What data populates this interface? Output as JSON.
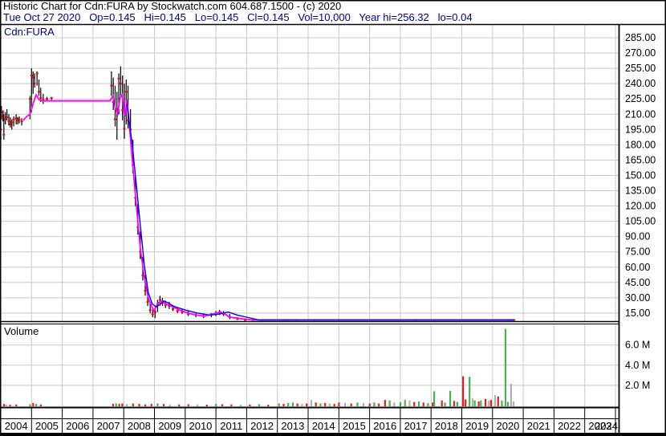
{
  "window_title": "Historic Chart for Cdn:FURA by Stockwatch.com",
  "header": {
    "line1": "Historic Chart for Cdn:FURA by Stockwatch.com 604.687.1500 - (c) 2020",
    "line2": "Tue Oct 27 2020   Op=0.145   Hi=0.145   Lo=0.145   Cl=0.145   Vol=10,000   Year hi=256.32   lo=0.04"
  },
  "quote": {
    "date": "Tue Oct 27 2020",
    "open": "0.145",
    "high": "0.145",
    "low": "0.145",
    "close": "0.145",
    "volume": "10,000",
    "year_high": "256.32",
    "year_low": "0.04"
  },
  "colors": {
    "grid": "#c9c9c9",
    "border": "#000000",
    "ma_fast": "#ff00ff",
    "ma_slow": "#0000ff",
    "candle": "#000000",
    "close_dot": "#ff0000",
    "vol_up": "#4caf50",
    "vol_down": "#e02020",
    "vol_neutral": "#b0b0b0",
    "header2_text": "#00007f",
    "symbol_text": "#000080"
  },
  "chart_data": {
    "type": "candlestick",
    "title": "Historic Chart for Cdn:FURA",
    "symbol_label": "Cdn:FURA",
    "volume_label": "Volume",
    "x_years": [
      "2004",
      "2005",
      "2006",
      "2007",
      "2008",
      "2009",
      "2010",
      "2011",
      "2012",
      "2013",
      "2014",
      "2015",
      "2016",
      "2017",
      "2018",
      "2019",
      "2020",
      "2021",
      "2022",
      "2023",
      "2024"
    ],
    "price_axis": {
      "tick_labels": [
        "285.00",
        "270.00",
        "255.00",
        "240.00",
        "225.00",
        "210.00",
        "195.00",
        "180.00",
        "165.00",
        "150.00",
        "135.00",
        "120.00",
        "105.00",
        "90.00",
        "75.00",
        "60.00",
        "45.00",
        "30.00",
        "15.00"
      ],
      "tick_values": [
        285,
        270,
        255,
        240,
        225,
        210,
        195,
        180,
        165,
        150,
        135,
        120,
        105,
        90,
        75,
        60,
        45,
        30,
        15
      ],
      "grid": true
    },
    "volume_axis": {
      "tick_labels": [
        "6.0 M",
        "4.0 M",
        "2.0 M"
      ],
      "tick_values_millions": [
        6,
        4,
        2
      ],
      "grid": true
    },
    "ma_fast_points": [
      [
        2004.73,
        204
      ],
      [
        2004.85,
        208
      ],
      [
        2004.95,
        210
      ],
      [
        2005.05,
        220
      ],
      [
        2005.15,
        229
      ],
      [
        2005.25,
        224
      ],
      [
        2005.4,
        223
      ],
      [
        2006.0,
        223
      ],
      [
        2007.0,
        223
      ],
      [
        2007.55,
        223
      ],
      [
        2007.65,
        228
      ],
      [
        2007.72,
        216
      ],
      [
        2007.8,
        210
      ],
      [
        2007.88,
        226
      ],
      [
        2007.95,
        229
      ],
      [
        2008.0,
        212
      ],
      [
        2008.05,
        208
      ],
      [
        2008.1,
        224
      ],
      [
        2008.15,
        212
      ],
      [
        2008.28,
        165
      ],
      [
        2008.41,
        121
      ],
      [
        2008.54,
        78
      ],
      [
        2008.67,
        50
      ],
      [
        2008.8,
        30
      ],
      [
        2008.88,
        24
      ],
      [
        2008.98,
        17
      ],
      [
        2009.12,
        25
      ],
      [
        2009.25,
        27
      ],
      [
        2009.36,
        24
      ],
      [
        2009.48,
        23
      ],
      [
        2009.6,
        21
      ],
      [
        2009.75,
        19
      ],
      [
        2009.9,
        17
      ],
      [
        2010.1,
        15
      ],
      [
        2010.35,
        13
      ],
      [
        2010.63,
        12
      ],
      [
        2010.89,
        14
      ],
      [
        2011.02,
        15
      ],
      [
        2011.15,
        16
      ],
      [
        2011.3,
        14
      ],
      [
        2011.45,
        11
      ],
      [
        2011.7,
        10
      ],
      [
        2011.95,
        9
      ],
      [
        2012.2,
        7
      ],
      [
        2012.5,
        5
      ],
      [
        2013.0,
        3
      ],
      [
        2014.0,
        2
      ],
      [
        2016.0,
        2
      ],
      [
        2018.0,
        2
      ],
      [
        2020.7,
        0.15
      ]
    ],
    "ma_slow_points": [
      [
        2008.1,
        220
      ],
      [
        2008.28,
        180
      ],
      [
        2008.41,
        141
      ],
      [
        2008.54,
        101
      ],
      [
        2008.67,
        62
      ],
      [
        2008.8,
        35
      ],
      [
        2008.93,
        24
      ],
      [
        2009.06,
        21
      ],
      [
        2009.2,
        24
      ],
      [
        2009.3,
        27
      ],
      [
        2009.45,
        25
      ],
      [
        2009.6,
        22
      ],
      [
        2009.8,
        20
      ],
      [
        2010.0,
        18
      ],
      [
        2010.4,
        15
      ],
      [
        2010.8,
        13
      ],
      [
        2011.1,
        14
      ],
      [
        2011.4,
        16
      ],
      [
        2011.7,
        13
      ],
      [
        2012.0,
        11
      ],
      [
        2012.4,
        8
      ],
      [
        2012.9,
        6
      ],
      [
        2013.5,
        4
      ],
      [
        2014.5,
        3
      ],
      [
        2020.7,
        1.5
      ]
    ],
    "candles": [
      [
        2004.0,
        210,
        184,
        195
      ],
      [
        2004.02,
        218,
        205,
        208
      ],
      [
        2004.07,
        214,
        203,
        212
      ],
      [
        2004.1,
        210,
        185,
        190
      ],
      [
        2004.15,
        212,
        200,
        205
      ],
      [
        2004.2,
        215,
        204,
        207
      ],
      [
        2004.26,
        210,
        199,
        203
      ],
      [
        2004.31,
        207,
        197,
        200
      ],
      [
        2004.36,
        205,
        195,
        202
      ],
      [
        2004.42,
        208,
        198,
        205
      ],
      [
        2004.5,
        210,
        200,
        206
      ],
      [
        2004.55,
        207,
        200,
        204
      ],
      [
        2004.6,
        208,
        201,
        205
      ],
      [
        2004.68,
        206,
        199,
        203
      ],
      [
        2004.95,
        228,
        205,
        225
      ],
      [
        2005.0,
        255,
        212,
        248
      ],
      [
        2005.05,
        252,
        230,
        246
      ],
      [
        2005.1,
        250,
        236,
        240
      ],
      [
        2005.18,
        252,
        238,
        250
      ],
      [
        2005.24,
        244,
        228,
        232
      ],
      [
        2005.3,
        236,
        222,
        226
      ],
      [
        2005.38,
        230,
        220,
        224
      ],
      [
        2005.5,
        227,
        223,
        225
      ],
      [
        2005.65,
        227,
        224,
        226
      ],
      [
        2007.6,
        252,
        228,
        238
      ],
      [
        2007.66,
        246,
        214,
        222
      ],
      [
        2007.72,
        238,
        198,
        205
      ],
      [
        2007.78,
        232,
        185,
        215
      ],
      [
        2007.84,
        250,
        210,
        245
      ],
      [
        2007.9,
        257,
        228,
        240
      ],
      [
        2007.96,
        248,
        204,
        214
      ],
      [
        2008.02,
        240,
        186,
        196
      ],
      [
        2008.08,
        244,
        200,
        232
      ],
      [
        2008.14,
        238,
        196,
        204
      ],
      [
        2008.22,
        215,
        185,
        195
      ],
      [
        2008.3,
        185,
        152,
        160
      ],
      [
        2008.38,
        150,
        120,
        128
      ],
      [
        2008.46,
        122,
        92,
        99
      ],
      [
        2008.54,
        95,
        68,
        75
      ],
      [
        2008.62,
        70,
        47,
        52
      ],
      [
        2008.7,
        52,
        32,
        37
      ],
      [
        2008.78,
        36,
        22,
        26
      ],
      [
        2008.86,
        26,
        15,
        18
      ],
      [
        2008.94,
        20,
        11,
        14
      ],
      [
        2009.02,
        18,
        10,
        16
      ],
      [
        2009.1,
        28,
        16,
        24
      ],
      [
        2009.18,
        32,
        22,
        28
      ],
      [
        2009.26,
        30,
        22,
        25
      ],
      [
        2009.36,
        27,
        20,
        23
      ],
      [
        2009.48,
        26,
        19,
        22
      ],
      [
        2009.6,
        23,
        17,
        19
      ],
      [
        2009.75,
        21,
        15,
        17
      ],
      [
        2009.9,
        19,
        14,
        16
      ],
      [
        2010.1,
        17,
        12,
        14
      ],
      [
        2010.35,
        15,
        11,
        13
      ],
      [
        2010.6,
        14,
        10,
        12
      ],
      [
        2010.85,
        15,
        11,
        14
      ],
      [
        2011.0,
        17,
        12,
        15
      ],
      [
        2011.12,
        18,
        13,
        16
      ],
      [
        2011.25,
        17,
        12,
        14
      ],
      [
        2011.45,
        14,
        9,
        11
      ],
      [
        2011.7,
        11,
        7,
        9
      ],
      [
        2011.95,
        9,
        5,
        7
      ],
      [
        2012.2,
        7,
        4,
        5
      ],
      [
        2012.5,
        5,
        3,
        4
      ],
      [
        2013.3,
        4,
        2,
        3
      ],
      [
        2013.6,
        3,
        1,
        2
      ],
      [
        2014.2,
        3,
        1,
        2
      ],
      [
        2015.0,
        3,
        1,
        2
      ],
      [
        2016.3,
        3,
        1,
        2
      ],
      [
        2017.5,
        4,
        1,
        2
      ],
      [
        2018.1,
        4,
        1,
        3
      ],
      [
        2020.55,
        4,
        1,
        2
      ],
      [
        2020.7,
        3,
        0.5,
        0.15
      ]
    ],
    "volume_bars_millions": [
      [
        2004.1,
        0.15,
        "r"
      ],
      [
        2004.17,
        0.1,
        "n"
      ],
      [
        2004.3,
        0.08,
        "r"
      ],
      [
        2004.5,
        0.1,
        "r"
      ],
      [
        2004.95,
        0.12,
        "g"
      ],
      [
        2005.05,
        0.25,
        "r"
      ],
      [
        2005.15,
        0.15,
        "g"
      ],
      [
        2005.3,
        0.1,
        "r"
      ],
      [
        2007.65,
        0.15,
        "r"
      ],
      [
        2007.75,
        0.2,
        "g"
      ],
      [
        2007.85,
        0.15,
        "r"
      ],
      [
        2007.95,
        0.2,
        "r"
      ],
      [
        2008.1,
        0.15,
        "n"
      ],
      [
        2008.3,
        0.2,
        "r"
      ],
      [
        2008.5,
        0.15,
        "r"
      ],
      [
        2008.7,
        0.1,
        "r"
      ],
      [
        2008.9,
        0.15,
        "r"
      ],
      [
        2009.1,
        0.2,
        "g"
      ],
      [
        2009.3,
        0.15,
        "r"
      ],
      [
        2009.5,
        0.1,
        "n"
      ],
      [
        2009.8,
        0.1,
        "r"
      ],
      [
        2010.1,
        0.12,
        "r"
      ],
      [
        2010.4,
        0.1,
        "n"
      ],
      [
        2010.7,
        0.08,
        "r"
      ],
      [
        2011.0,
        0.15,
        "g"
      ],
      [
        2011.2,
        0.12,
        "r"
      ],
      [
        2011.5,
        0.1,
        "r"
      ],
      [
        2011.8,
        0.08,
        "n"
      ],
      [
        2012.1,
        0.1,
        "r"
      ],
      [
        2012.4,
        0.12,
        "g"
      ],
      [
        2012.7,
        0.08,
        "r"
      ],
      [
        2013.05,
        0.2,
        "g"
      ],
      [
        2013.2,
        0.15,
        "r"
      ],
      [
        2013.35,
        0.25,
        "g"
      ],
      [
        2013.5,
        0.3,
        "g"
      ],
      [
        2013.65,
        0.2,
        "r"
      ],
      [
        2013.8,
        0.15,
        "n"
      ],
      [
        2013.95,
        0.2,
        "r"
      ],
      [
        2014.1,
        0.55,
        "n"
      ],
      [
        2014.25,
        0.3,
        "r"
      ],
      [
        2014.4,
        0.2,
        "g"
      ],
      [
        2014.55,
        0.25,
        "r"
      ],
      [
        2014.7,
        0.2,
        "n"
      ],
      [
        2014.85,
        0.15,
        "r"
      ],
      [
        2015.0,
        0.3,
        "r"
      ],
      [
        2015.2,
        0.25,
        "n"
      ],
      [
        2015.4,
        0.2,
        "r"
      ],
      [
        2015.6,
        0.3,
        "g"
      ],
      [
        2015.8,
        0.25,
        "n"
      ],
      [
        2016.0,
        0.2,
        "r"
      ],
      [
        2016.15,
        0.3,
        "g"
      ],
      [
        2016.3,
        0.2,
        "r"
      ],
      [
        2016.5,
        0.55,
        "r"
      ],
      [
        2016.65,
        0.5,
        "g"
      ],
      [
        2016.8,
        0.3,
        "n"
      ],
      [
        2017.0,
        0.35,
        "g"
      ],
      [
        2017.15,
        0.55,
        "g"
      ],
      [
        2017.3,
        0.5,
        "n"
      ],
      [
        2017.45,
        0.35,
        "r"
      ],
      [
        2017.6,
        0.4,
        "g"
      ],
      [
        2017.75,
        0.3,
        "r"
      ],
      [
        2017.9,
        0.25,
        "g"
      ],
      [
        2018.05,
        0.3,
        "r"
      ],
      [
        2018.1,
        1.4,
        "g"
      ],
      [
        2018.35,
        0.5,
        "r"
      ],
      [
        2018.45,
        0.3,
        "g"
      ],
      [
        2018.62,
        1.45,
        "g"
      ],
      [
        2018.75,
        0.45,
        "r"
      ],
      [
        2018.85,
        0.35,
        "g"
      ],
      [
        2019.04,
        2.9,
        "r"
      ],
      [
        2019.12,
        0.6,
        "r"
      ],
      [
        2019.25,
        2.85,
        "g"
      ],
      [
        2019.35,
        0.7,
        "n"
      ],
      [
        2019.42,
        0.5,
        "g"
      ],
      [
        2019.55,
        0.4,
        "r"
      ],
      [
        2019.62,
        0.5,
        "g"
      ],
      [
        2019.77,
        0.65,
        "r"
      ],
      [
        2019.88,
        0.5,
        "n"
      ],
      [
        2019.95,
        0.55,
        "r"
      ],
      [
        2020.08,
        1.05,
        "n"
      ],
      [
        2020.18,
        0.9,
        "r"
      ],
      [
        2020.3,
        0.5,
        "g"
      ],
      [
        2020.42,
        7.6,
        "g"
      ],
      [
        2020.5,
        0.35,
        "g"
      ],
      [
        2020.6,
        2.15,
        "n"
      ],
      [
        2020.68,
        0.4,
        "n"
      ]
    ]
  }
}
